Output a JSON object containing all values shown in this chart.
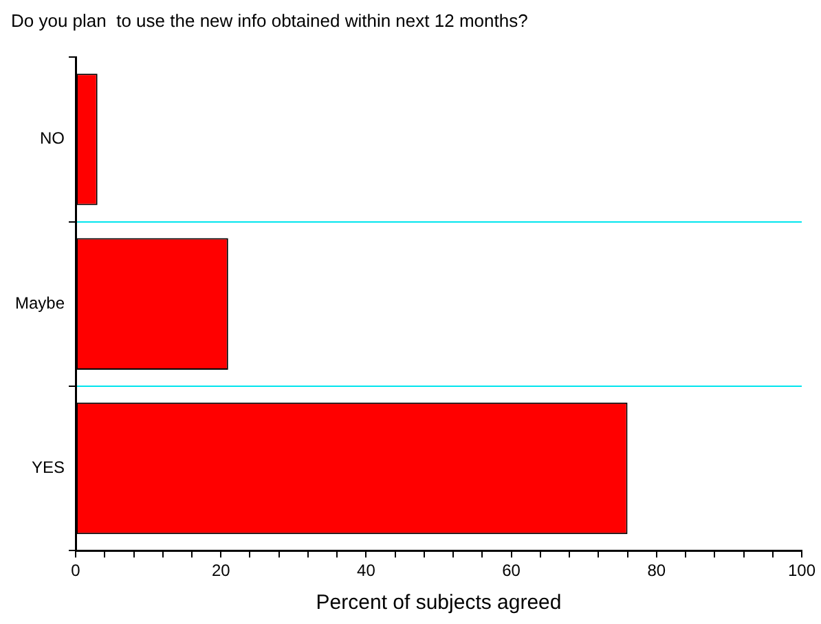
{
  "chart_data": {
    "type": "bar",
    "orientation": "horizontal",
    "title": "Do you plan  to use the new info obtained within next 12 months?",
    "xlabel": "Percent of subjects agreed",
    "categories": [
      "NO",
      "Maybe",
      "YES"
    ],
    "values": [
      3,
      21,
      76
    ],
    "color": "#ff0000",
    "xlim": [
      0,
      100
    ],
    "xticks": [
      0,
      {
        "value": 4,
        "label": null
      },
      {
        "value": 8,
        "label": null
      },
      {
        "value": 12,
        "label": null
      },
      {
        "value": 16,
        "label": null
      },
      20,
      {
        "value": 24,
        "label": null
      },
      {
        "value": 28,
        "label": null
      },
      {
        "value": 32,
        "label": null
      },
      {
        "value": 36,
        "label": null
      },
      40,
      {
        "value": 44,
        "label": null
      },
      {
        "value": 48,
        "label": null
      },
      {
        "value": 52,
        "label": null
      },
      {
        "value": 56,
        "label": null
      },
      60,
      {
        "value": 64,
        "label": null
      },
      {
        "value": 68,
        "label": null
      },
      {
        "value": 72,
        "label": null
      },
      {
        "value": 76,
        "label": null
      },
      80,
      {
        "value": 84,
        "label": null
      },
      {
        "value": 88,
        "label": null
      },
      {
        "value": 92,
        "label": null
      },
      {
        "value": 96,
        "label": null
      },
      100
    ],
    "grid": "y",
    "legend": false
  }
}
